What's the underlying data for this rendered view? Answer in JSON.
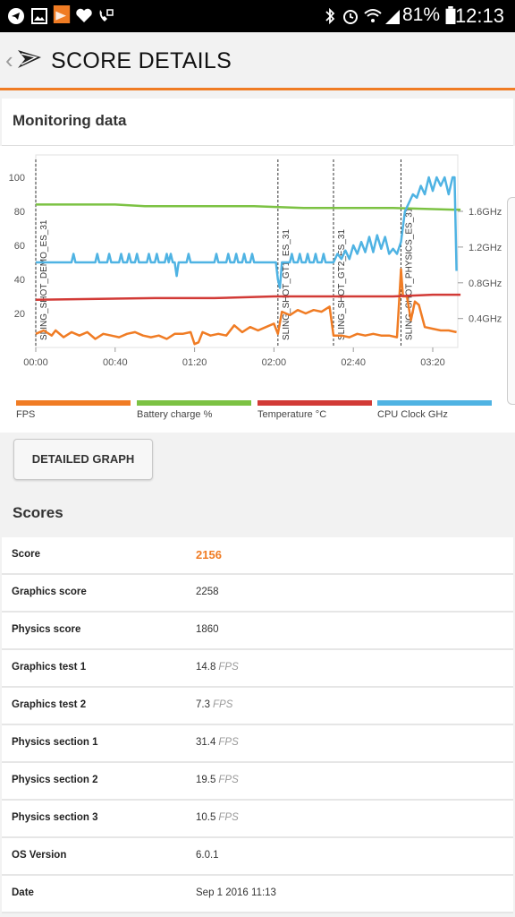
{
  "status_bar": {
    "battery_pct": "81%",
    "time": "12:13"
  },
  "app_bar": {
    "title": "SCORE DETAILS",
    "back_icon": "back-chevron-icon",
    "logo_icon": "3dmark-logo-icon"
  },
  "monitoring": {
    "title": "Monitoring data",
    "detailed_button": "DETAILED GRAPH",
    "legend": [
      {
        "label": "FPS",
        "color": "#f07c24"
      },
      {
        "label": "Battery charge %",
        "color": "#7cc243"
      },
      {
        "label": "Temperature °C",
        "color": "#d23a36"
      },
      {
        "label": "CPU Clock GHz",
        "color": "#4fb3e3"
      }
    ]
  },
  "chart_data": {
    "type": "line",
    "x_ticks": [
      "00:00",
      "00:40",
      "01:20",
      "02:00",
      "02:40",
      "03:20"
    ],
    "y_left_ticks": [
      "100",
      "80",
      "60",
      "40",
      "20"
    ],
    "y_right_ticks": [
      "1.6GHz",
      "1.2GHz",
      "0.8GHz",
      "0.4GHz"
    ],
    "markers": [
      {
        "label": "SLING_SHOT_DEMO_ES_31",
        "t": 0
      },
      {
        "label": "SLING_SHOT_GT1_ES_31",
        "t": 122
      },
      {
        "label": "SLING_SHOT_GT2_ES_31",
        "t": 150
      },
      {
        "label": "SLING_SHOT_PHYSICS_ES_31",
        "t": 184
      }
    ],
    "series": [
      {
        "name": "FPS",
        "color": "#f07c24",
        "axis": "left",
        "points": [
          [
            0,
            8
          ],
          [
            4,
            10
          ],
          [
            8,
            7
          ],
          [
            10,
            10
          ],
          [
            14,
            6
          ],
          [
            18,
            9
          ],
          [
            22,
            7
          ],
          [
            26,
            9
          ],
          [
            30,
            5
          ],
          [
            34,
            8
          ],
          [
            38,
            7
          ],
          [
            42,
            6
          ],
          [
            46,
            8
          ],
          [
            50,
            9
          ],
          [
            54,
            7
          ],
          [
            58,
            6
          ],
          [
            62,
            7
          ],
          [
            66,
            5
          ],
          [
            70,
            8
          ],
          [
            74,
            8
          ],
          [
            78,
            9
          ],
          [
            80,
            2
          ],
          [
            82,
            3
          ],
          [
            84,
            9
          ],
          [
            88,
            7
          ],
          [
            92,
            8
          ],
          [
            96,
            7
          ],
          [
            100,
            13
          ],
          [
            104,
            9
          ],
          [
            108,
            12
          ],
          [
            112,
            10
          ],
          [
            116,
            12
          ],
          [
            120,
            14
          ],
          [
            122,
            8
          ],
          [
            124,
            21
          ],
          [
            128,
            19
          ],
          [
            132,
            22
          ],
          [
            136,
            20
          ],
          [
            140,
            22
          ],
          [
            144,
            21
          ],
          [
            148,
            24
          ],
          [
            150,
            7
          ],
          [
            154,
            7
          ],
          [
            158,
            6
          ],
          [
            162,
            8
          ],
          [
            166,
            7
          ],
          [
            170,
            8
          ],
          [
            174,
            7
          ],
          [
            178,
            7
          ],
          [
            182,
            6
          ],
          [
            183,
            26
          ],
          [
            184,
            46
          ],
          [
            185,
            30
          ],
          [
            187,
            30
          ],
          [
            189,
            16
          ],
          [
            191,
            27
          ],
          [
            193,
            25
          ],
          [
            196,
            12
          ],
          [
            200,
            11
          ],
          [
            204,
            10
          ],
          [
            208,
            10
          ],
          [
            212,
            9
          ]
        ]
      },
      {
        "name": "Battery charge %",
        "color": "#7cc243",
        "axis": "left",
        "points": [
          [
            0,
            84
          ],
          [
            40,
            84
          ],
          [
            55,
            83
          ],
          [
            110,
            83
          ],
          [
            135,
            82
          ],
          [
            150,
            82
          ],
          [
            180,
            82
          ],
          [
            210,
            81
          ],
          [
            214,
            81
          ]
        ]
      },
      {
        "name": "Temperature °C",
        "color": "#d23a36",
        "axis": "left",
        "points": [
          [
            0,
            28
          ],
          [
            60,
            29
          ],
          [
            90,
            29
          ],
          [
            120,
            30
          ],
          [
            150,
            30
          ],
          [
            180,
            30
          ],
          [
            200,
            31
          ],
          [
            214,
            31
          ]
        ]
      },
      {
        "name": "CPU Clock GHz",
        "color": "#4fb3e3",
        "axis": "left",
        "points": [
          [
            0,
            50
          ],
          [
            18,
            50
          ],
          [
            19,
            55
          ],
          [
            20,
            50
          ],
          [
            30,
            50
          ],
          [
            31,
            55
          ],
          [
            32,
            50
          ],
          [
            36,
            50
          ],
          [
            37,
            55
          ],
          [
            38,
            50
          ],
          [
            42,
            50
          ],
          [
            43,
            55
          ],
          [
            44,
            50
          ],
          [
            46,
            50
          ],
          [
            47,
            55
          ],
          [
            48,
            50
          ],
          [
            50,
            50
          ],
          [
            51,
            55
          ],
          [
            52,
            50
          ],
          [
            56,
            50
          ],
          [
            57,
            55
          ],
          [
            58,
            50
          ],
          [
            60,
            50
          ],
          [
            61,
            55
          ],
          [
            62,
            50
          ],
          [
            65,
            50
          ],
          [
            66,
            55
          ],
          [
            67,
            50
          ],
          [
            68,
            55
          ],
          [
            69,
            50
          ],
          [
            70,
            50
          ],
          [
            71,
            42
          ],
          [
            72,
            50
          ],
          [
            76,
            50
          ],
          [
            77,
            55
          ],
          [
            78,
            50
          ],
          [
            90,
            50
          ],
          [
            91,
            55
          ],
          [
            92,
            50
          ],
          [
            96,
            50
          ],
          [
            97,
            55
          ],
          [
            98,
            50
          ],
          [
            100,
            50
          ],
          [
            101,
            55
          ],
          [
            102,
            50
          ],
          [
            104,
            50
          ],
          [
            105,
            55
          ],
          [
            106,
            50
          ],
          [
            108,
            50
          ],
          [
            109,
            55
          ],
          [
            110,
            50
          ],
          [
            121,
            50
          ],
          [
            122,
            40
          ],
          [
            123,
            35
          ],
          [
            124,
            50
          ],
          [
            128,
            50
          ],
          [
            129,
            55
          ],
          [
            130,
            50
          ],
          [
            132,
            50
          ],
          [
            133,
            55
          ],
          [
            134,
            50
          ],
          [
            136,
            50
          ],
          [
            137,
            55
          ],
          [
            138,
            50
          ],
          [
            140,
            50
          ],
          [
            141,
            55
          ],
          [
            142,
            50
          ],
          [
            144,
            50
          ],
          [
            145,
            55
          ],
          [
            146,
            50
          ],
          [
            150,
            50
          ],
          [
            152,
            55
          ],
          [
            154,
            52
          ],
          [
            156,
            57
          ],
          [
            158,
            52
          ],
          [
            160,
            60
          ],
          [
            162,
            55
          ],
          [
            164,
            62
          ],
          [
            166,
            56
          ],
          [
            168,
            65
          ],
          [
            170,
            56
          ],
          [
            172,
            66
          ],
          [
            174,
            58
          ],
          [
            176,
            65
          ],
          [
            178,
            55
          ],
          [
            180,
            58
          ],
          [
            182,
            55
          ],
          [
            184,
            62
          ],
          [
            186,
            80
          ],
          [
            188,
            85
          ],
          [
            190,
            90
          ],
          [
            192,
            88
          ],
          [
            194,
            95
          ],
          [
            196,
            90
          ],
          [
            198,
            100
          ],
          [
            200,
            92
          ],
          [
            202,
            100
          ],
          [
            204,
            95
          ],
          [
            206,
            100
          ],
          [
            208,
            90
          ],
          [
            210,
            100
          ],
          [
            211,
            100
          ],
          [
            212,
            45
          ]
        ]
      }
    ]
  },
  "scores": {
    "title": "Scores",
    "rows": [
      {
        "label": "Score",
        "value": "2156",
        "unit": "",
        "highlight": true
      },
      {
        "label": "Graphics score",
        "value": "2258",
        "unit": ""
      },
      {
        "label": "Physics score",
        "value": "1860",
        "unit": ""
      },
      {
        "label": "Graphics test 1",
        "value": "14.8",
        "unit": "FPS"
      },
      {
        "label": "Graphics test 2",
        "value": "7.3",
        "unit": "FPS"
      },
      {
        "label": "Physics section 1",
        "value": "31.4",
        "unit": "FPS"
      },
      {
        "label": "Physics section 2",
        "value": "19.5",
        "unit": "FPS"
      },
      {
        "label": "Physics section 3",
        "value": "10.5",
        "unit": "FPS"
      },
      {
        "label": "OS Version",
        "value": "6.0.1",
        "unit": ""
      },
      {
        "label": "Date",
        "value": "Sep 1 2016 11:13",
        "unit": ""
      }
    ]
  }
}
